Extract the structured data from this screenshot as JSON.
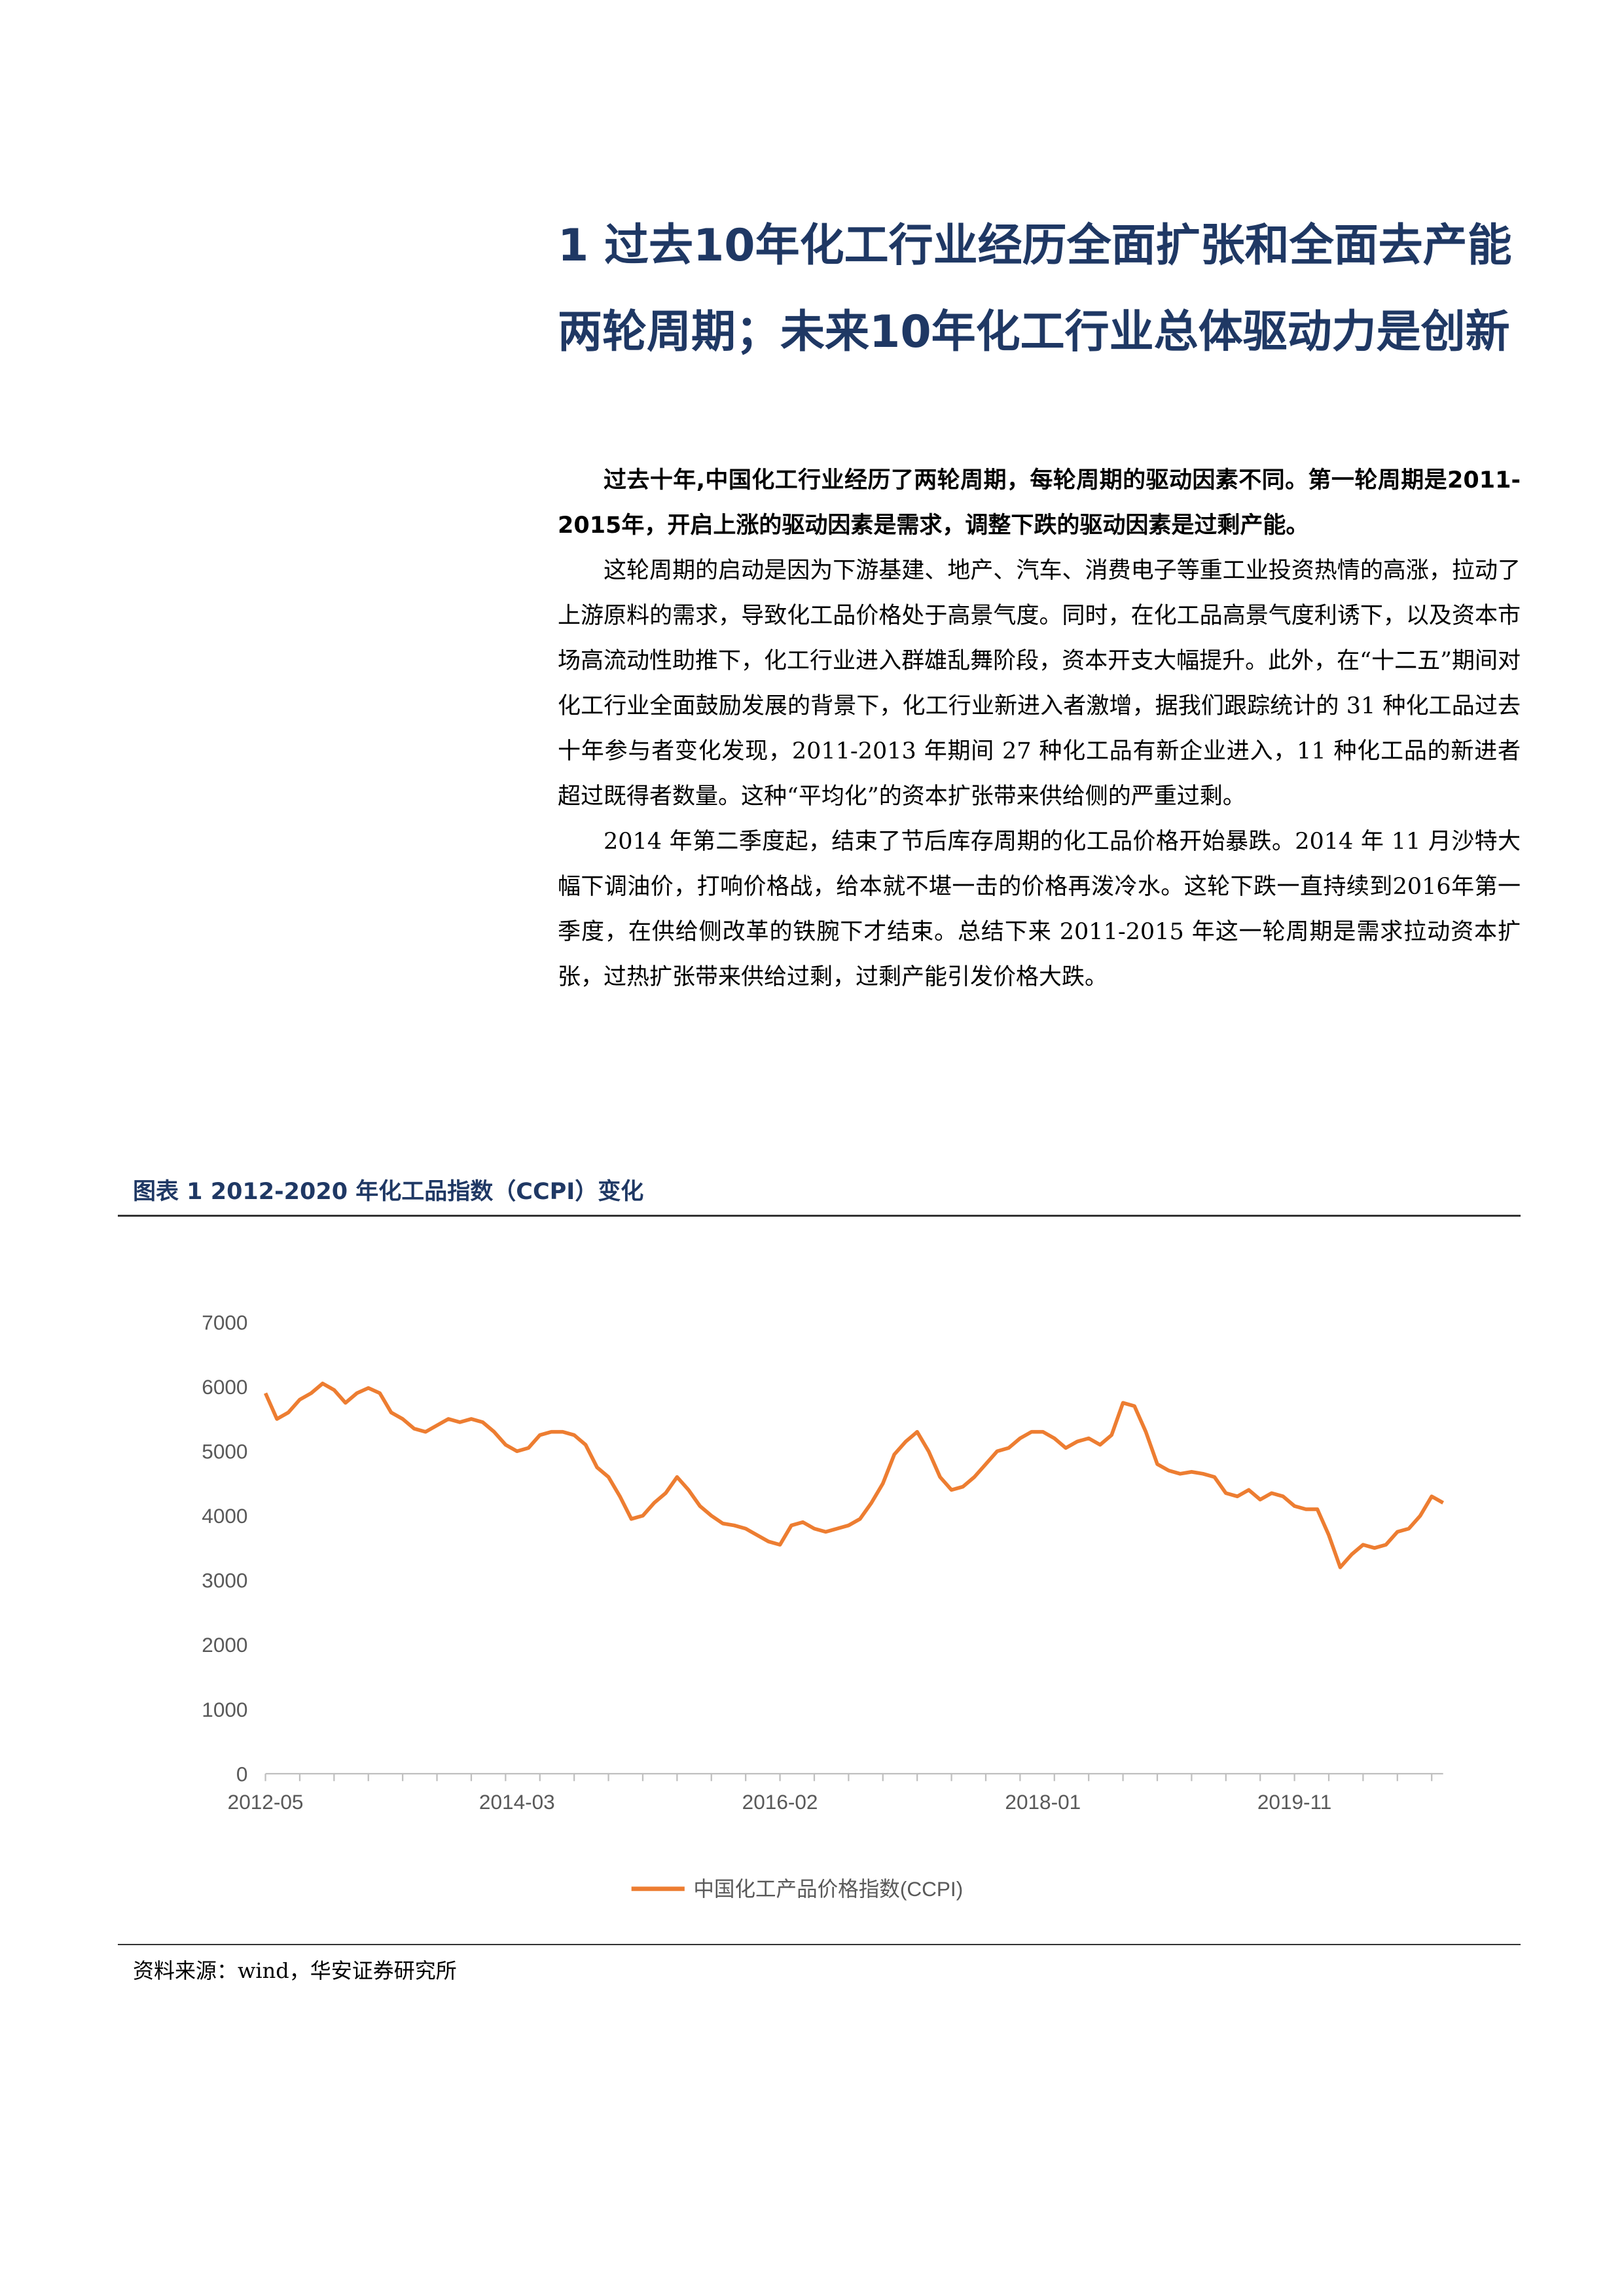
{
  "heading": "1 过去10年化工行业经历全面扩张和全面去产能两轮周期；未来10年化工行业总体驱动力是创新",
  "paragraphs": [
    "过去十年,中国化工行业经历了两轮周期，每轮周期的驱动因素不同。第一轮周期是2011-2015年，开启上涨的驱动因素是需求，调整下跌的驱动因素是过剩产能。",
    "这轮周期的启动是因为下游基建、地产、汽车、消费电子等重工业投资热情的高涨，拉动了上游原料的需求，导致化工品价格处于高景气度。同时，在化工品高景气度利诱下，以及资本市场高流动性助推下，化工行业进入群雄乱舞阶段，资本开支大幅提升。此外，在“十二五”期间对化工行业全面鼓励发展的背景下，化工行业新进入者激增，据我们跟踪统计的 31 种化工品过去十年参与者变化发现，2011-2013 年期间 27 种化工品有新企业进入，11 种化工品的新进者超过既得者数量。这种“平均化”的资本扩张带来供给侧的严重过剩。",
    "2014 年第二季度起，结束了节后库存周期的化工品价格开始暴跌。2014 年 11 月沙特大幅下调油价，打响价格战，给本就不堪一击的价格再泼冷水。这轮下跌一直持续到2016年第一季度，在供给侧改革的铁腕下才结束。总结下来 2011-2015 年这一轮周期是需求拉动资本扩张，过热扩张带来供给过剩，过剩产能引发价格大跌。"
  ],
  "source": "资料来源：wind，华安证券研究所",
  "chart_data": {
    "type": "line",
    "title": "图表 1 2012-2020 年化工品指数（CCPI）变化",
    "x": [
      "2012-05",
      "2012-06",
      "2012-07",
      "2012-08",
      "2012-09",
      "2012-10",
      "2012-11",
      "2012-12",
      "2013-01",
      "2013-02",
      "2013-03",
      "2013-04",
      "2013-05",
      "2013-06",
      "2013-07",
      "2013-08",
      "2013-09",
      "2013-10",
      "2013-11",
      "2013-12",
      "2014-01",
      "2014-02",
      "2014-03",
      "2014-04",
      "2014-05",
      "2014-06",
      "2014-07",
      "2014-08",
      "2014-09",
      "2014-10",
      "2014-11",
      "2014-12",
      "2015-01",
      "2015-02",
      "2015-03",
      "2015-04",
      "2015-05",
      "2015-06",
      "2015-07",
      "2015-08",
      "2015-09",
      "2015-10",
      "2015-11",
      "2015-12",
      "2016-01",
      "2016-02",
      "2016-03",
      "2016-04",
      "2016-05",
      "2016-06",
      "2016-07",
      "2016-08",
      "2016-09",
      "2016-10",
      "2016-11",
      "2016-12",
      "2017-01",
      "2017-02",
      "2017-03",
      "2017-04",
      "2017-05",
      "2017-06",
      "2017-07",
      "2017-08",
      "2017-09",
      "2017-10",
      "2017-11",
      "2017-12",
      "2018-01",
      "2018-02",
      "2018-03",
      "2018-04",
      "2018-05",
      "2018-06",
      "2018-07",
      "2018-08",
      "2018-09",
      "2018-10",
      "2018-11",
      "2018-12",
      "2019-01",
      "2019-02",
      "2019-03",
      "2019-04",
      "2019-05",
      "2019-06",
      "2019-07",
      "2019-08",
      "2019-09",
      "2019-10",
      "2019-11",
      "2019-12",
      "2020-01",
      "2020-02",
      "2020-03",
      "2020-04",
      "2020-05",
      "2020-06",
      "2020-07",
      "2020-08",
      "2020-09",
      "2020-10",
      "2020-11",
      "2020-12"
    ],
    "series": [
      {
        "name": "中国化工产品价格指数(CCPI)",
        "color": "#ed7d31",
        "values": [
          5900,
          5500,
          5600,
          5800,
          5900,
          6050,
          5950,
          5750,
          5900,
          5980,
          5900,
          5600,
          5500,
          5350,
          5300,
          5400,
          5500,
          5450,
          5500,
          5450,
          5300,
          5100,
          5000,
          5050,
          5250,
          5300,
          5300,
          5250,
          5100,
          4750,
          4600,
          4300,
          3950,
          4000,
          4200,
          4350,
          4600,
          4400,
          4150,
          4000,
          3880,
          3850,
          3800,
          3700,
          3600,
          3550,
          3850,
          3900,
          3800,
          3750,
          3800,
          3850,
          3950,
          4200,
          4500,
          4950,
          5150,
          5300,
          5000,
          4600,
          4400,
          4450,
          4600,
          4800,
          5000,
          5050,
          5200,
          5300,
          5300,
          5200,
          5050,
          5150,
          5200,
          5100,
          5250,
          5750,
          5700,
          5300,
          4800,
          4700,
          4650,
          4680,
          4650,
          4600,
          4350,
          4300,
          4400,
          4250,
          4350,
          4300,
          4150,
          4100,
          4100,
          3700,
          3200,
          3400,
          3550,
          3500,
          3550,
          3750,
          3800,
          4000,
          4300,
          4200
        ]
      }
    ],
    "xticks": [
      "2012-05",
      "2014-03",
      "2016-02",
      "2018-01",
      "2019-11"
    ],
    "ylim": [
      0,
      7000
    ],
    "yticks": [
      0,
      1000,
      2000,
      3000,
      4000,
      5000,
      6000,
      7000
    ],
    "grid": false,
    "legend": "bottom"
  }
}
